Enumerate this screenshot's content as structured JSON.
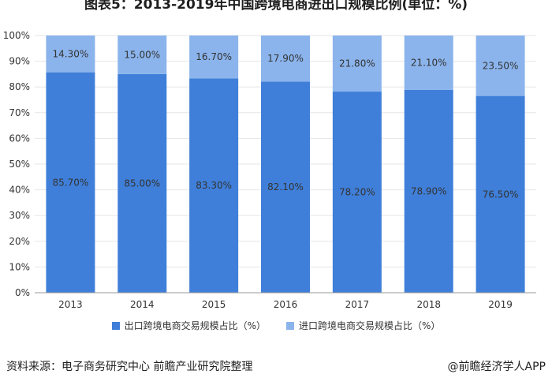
{
  "title": "图表5：2013-2019年中国跨境电商进出口规模比例(单位：%)",
  "source": "资料来源：电子商务研究中心 前瞻产业研究院整理",
  "brand": "@前瞻经济学人APP",
  "colors": {
    "export": "#3f7fd9",
    "import": "#8bb4ec",
    "grid": "#e6e6e6",
    "axis": "#999999",
    "label": "#333333"
  },
  "legend": {
    "export": "出口跨境电商交易规模占比（%）",
    "import": "进口跨境电商交易规模占比（%）"
  },
  "chart_data": {
    "type": "bar",
    "stacked": true,
    "title": "图表5：2013-2019年中国跨境电商进出口规模比例(单位：%)",
    "categories": [
      "2013",
      "2014",
      "2015",
      "2016",
      "2017",
      "2018",
      "2019"
    ],
    "series": [
      {
        "name": "出口跨境电商交易规模占比（%）",
        "values": [
          85.7,
          85.0,
          83.3,
          82.1,
          78.2,
          78.9,
          76.5
        ],
        "labels": [
          "85.70%",
          "85.00%",
          "83.30%",
          "82.10%",
          "78.20%",
          "78.90%",
          "76.50%"
        ]
      },
      {
        "name": "进口跨境电商交易规模占比（%）",
        "values": [
          14.3,
          15.0,
          16.7,
          17.9,
          21.8,
          21.1,
          23.5
        ],
        "labels": [
          "14.30%",
          "15.00%",
          "16.70%",
          "17.90%",
          "21.80%",
          "21.10%",
          "23.50%"
        ]
      }
    ],
    "yticks": [
      "0%",
      "10%",
      "20%",
      "30%",
      "40%",
      "50%",
      "60%",
      "70%",
      "80%",
      "90%",
      "100%"
    ],
    "ylim": [
      0,
      100
    ],
    "grid": true,
    "legend_position": "bottom"
  }
}
